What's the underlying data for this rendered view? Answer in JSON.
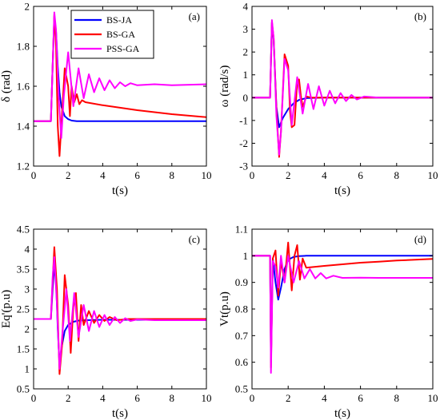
{
  "series_styles": [
    {
      "name": "BS-JA",
      "color": "#0000ff"
    },
    {
      "name": "BS-GA",
      "color": "#ff0000"
    },
    {
      "name": "PSS-GA",
      "color": "#ff00ff"
    }
  ],
  "chart_data": [
    {
      "type": "line",
      "panel_label": "(a)",
      "xlabel": "t(s)",
      "ylabel": "δ (rad)",
      "xlim": [
        0,
        10
      ],
      "ylim": [
        1.2,
        2.0
      ],
      "xticks": [
        0,
        2,
        4,
        6,
        8,
        10
      ],
      "yticks": [
        1.2,
        1.4,
        1.6,
        1.8,
        2.0
      ],
      "ytick_labels": [
        "1.2",
        "1.4",
        "1.6",
        "1.8",
        "2"
      ],
      "grid": false,
      "legend": {
        "placement": "top-center",
        "entries": [
          "BS-JA",
          "BS-GA",
          "PSS-GA"
        ]
      },
      "series": [
        {
          "name": "BS-JA",
          "x": [
            0,
            1.0,
            1.1,
            1.2,
            1.3,
            1.4,
            1.5,
            1.6,
            1.8,
            2.0,
            2.2,
            2.5,
            3.0,
            4.0,
            6.0,
            10.0
          ],
          "y": [
            1.425,
            1.425,
            1.7,
            1.95,
            1.87,
            1.7,
            1.57,
            1.5,
            1.45,
            1.435,
            1.428,
            1.425,
            1.425,
            1.425,
            1.425,
            1.425
          ]
        },
        {
          "name": "BS-GA",
          "x": [
            0,
            1.0,
            1.1,
            1.2,
            1.3,
            1.4,
            1.5,
            1.6,
            1.8,
            2.0,
            2.1,
            2.2,
            2.35,
            2.5,
            2.65,
            2.8,
            3.0,
            4.0,
            6.0,
            8.0,
            10.0
          ],
          "y": [
            1.425,
            1.425,
            1.7,
            1.96,
            1.8,
            1.4,
            1.25,
            1.4,
            1.69,
            1.6,
            1.45,
            1.6,
            1.52,
            1.56,
            1.51,
            1.53,
            1.52,
            1.505,
            1.48,
            1.46,
            1.445
          ]
        },
        {
          "name": "PSS-GA",
          "x": [
            0,
            1.0,
            1.1,
            1.2,
            1.3,
            1.45,
            1.6,
            1.75,
            2.0,
            2.3,
            2.6,
            2.9,
            3.2,
            3.5,
            3.8,
            4.1,
            4.4,
            4.7,
            5.0,
            5.3,
            5.6,
            6.0,
            7.0,
            8.0,
            10.0
          ],
          "y": [
            1.425,
            1.425,
            1.7,
            1.97,
            1.88,
            1.55,
            1.34,
            1.55,
            1.77,
            1.5,
            1.69,
            1.54,
            1.66,
            1.57,
            1.64,
            1.58,
            1.63,
            1.59,
            1.62,
            1.6,
            1.615,
            1.605,
            1.61,
            1.605,
            1.61
          ]
        }
      ]
    },
    {
      "type": "line",
      "panel_label": "(b)",
      "xlabel": "t(s)",
      "ylabel": "ω (rad/s)",
      "xlim": [
        0,
        10
      ],
      "ylim": [
        -3,
        4
      ],
      "xticks": [
        0,
        2,
        4,
        6,
        8,
        10
      ],
      "yticks": [
        -3,
        -2,
        -1,
        0,
        1,
        2,
        3,
        4
      ],
      "ytick_labels": [
        "-3",
        "-2",
        "-1",
        "0",
        "1",
        "2",
        "3",
        "4"
      ],
      "grid": false,
      "series": [
        {
          "name": "BS-JA",
          "x": [
            0,
            1.0,
            1.1,
            1.2,
            1.35,
            1.5,
            1.7,
            2.0,
            2.3,
            2.6,
            3.0,
            4.0,
            10.0
          ],
          "y": [
            0,
            0,
            3.3,
            2.5,
            -0.4,
            -1.3,
            -0.9,
            -0.5,
            -0.25,
            -0.1,
            -0.02,
            0,
            0
          ]
        },
        {
          "name": "BS-GA",
          "x": [
            0,
            1.0,
            1.1,
            1.2,
            1.35,
            1.5,
            1.6,
            1.8,
            2.0,
            2.1,
            2.2,
            2.35,
            2.5,
            2.6,
            2.7,
            2.8,
            2.9,
            3.0,
            3.3,
            4.0,
            10.0
          ],
          "y": [
            0,
            0,
            3.3,
            2.6,
            -0.5,
            -2.6,
            -1.5,
            1.9,
            1.4,
            -0.6,
            -1.3,
            -1.2,
            0.7,
            0.8,
            0.1,
            -0.4,
            -0.2,
            0.05,
            0,
            0,
            0
          ]
        },
        {
          "name": "PSS-GA",
          "x": [
            0,
            1.0,
            1.1,
            1.2,
            1.35,
            1.5,
            1.6,
            1.8,
            2.0,
            2.2,
            2.5,
            2.8,
            3.1,
            3.4,
            3.7,
            4.0,
            4.3,
            4.6,
            4.9,
            5.2,
            5.5,
            5.8,
            6.2,
            7.0,
            10.0
          ],
          "y": [
            0,
            0,
            3.4,
            2.6,
            -0.8,
            -2.5,
            -1.5,
            1.7,
            1.2,
            -1.2,
            0.9,
            -0.7,
            0.6,
            -0.5,
            0.5,
            -0.35,
            0.3,
            -0.25,
            0.2,
            -0.15,
            0.12,
            -0.08,
            0.05,
            0,
            0
          ]
        }
      ]
    },
    {
      "type": "line",
      "panel_label": "(c)",
      "xlabel": "t(s)",
      "ylabel": "Eq'(p.u)",
      "xlim": [
        0,
        10
      ],
      "ylim": [
        0.5,
        4.5
      ],
      "xticks": [
        0,
        2,
        4,
        6,
        8,
        10
      ],
      "yticks": [
        0.5,
        1,
        1.5,
        2,
        2.5,
        3,
        3.5,
        4,
        4.5
      ],
      "ytick_labels": [
        "0.5",
        "1",
        "1.5",
        "2",
        "2.5",
        "3",
        "3.5",
        "4",
        "4.5"
      ],
      "grid": false,
      "series": [
        {
          "name": "BS-JA",
          "x": [
            0,
            1.0,
            1.1,
            1.2,
            1.3,
            1.4,
            1.5,
            1.6,
            1.8,
            2.0,
            2.3,
            2.6,
            3.0,
            4.0,
            10.0
          ],
          "y": [
            2.25,
            2.25,
            3.0,
            3.6,
            3.2,
            2.0,
            1.1,
            1.5,
            1.95,
            2.1,
            2.18,
            2.21,
            2.22,
            2.23,
            2.23
          ]
        },
        {
          "name": "BS-GA",
          "x": [
            0,
            1.0,
            1.1,
            1.2,
            1.35,
            1.5,
            1.65,
            1.8,
            2.0,
            2.15,
            2.3,
            2.45,
            2.6,
            2.75,
            2.9,
            3.2,
            3.5,
            3.8,
            4.1,
            4.4,
            4.8,
            5.5,
            10.0
          ],
          "y": [
            2.25,
            2.25,
            3.2,
            4.05,
            3.0,
            0.87,
            1.6,
            3.35,
            2.6,
            1.4,
            2.55,
            2.9,
            1.7,
            2.6,
            2.1,
            2.45,
            2.15,
            2.35,
            2.2,
            2.3,
            2.22,
            2.25,
            2.25
          ]
        },
        {
          "name": "PSS-GA",
          "x": [
            0,
            1.0,
            1.1,
            1.2,
            1.35,
            1.5,
            1.65,
            1.9,
            2.1,
            2.35,
            2.6,
            2.9,
            3.2,
            3.5,
            3.8,
            4.1,
            4.4,
            4.7,
            5.0,
            5.3,
            5.6,
            6.0,
            7.0,
            10.0
          ],
          "y": [
            2.25,
            2.25,
            3.3,
            3.8,
            2.6,
            1.0,
            1.8,
            3.0,
            1.7,
            2.9,
            1.8,
            2.6,
            1.95,
            2.45,
            2.05,
            2.35,
            2.1,
            2.3,
            2.15,
            2.27,
            2.2,
            2.24,
            2.22,
            2.22
          ]
        }
      ]
    },
    {
      "type": "line",
      "panel_label": "(d)",
      "xlabel": "t(s)",
      "ylabel": "Vt(p.u)",
      "xlim": [
        0,
        10
      ],
      "ylim": [
        0.5,
        1.1
      ],
      "xticks": [
        0,
        2,
        4,
        6,
        8,
        10
      ],
      "yticks": [
        0.5,
        0.6,
        0.7,
        0.8,
        0.9,
        1.0,
        1.1
      ],
      "ytick_labels": [
        "0.5",
        "0.6",
        "0.7",
        "0.8",
        "0.9",
        "1",
        "1.1"
      ],
      "grid": false,
      "series": [
        {
          "name": "BS-JA",
          "x": [
            0,
            1.0,
            1.05,
            1.15,
            1.3,
            1.45,
            1.6,
            1.8,
            2.0,
            2.3,
            2.6,
            3.0,
            4.0,
            10.0
          ],
          "y": [
            1.0,
            1.0,
            0.6,
            0.99,
            0.9,
            0.835,
            0.88,
            0.95,
            0.985,
            0.996,
            0.999,
            1.0,
            1.0,
            1.0
          ]
        },
        {
          "name": "BS-GA",
          "x": [
            0,
            1.0,
            1.05,
            1.15,
            1.3,
            1.45,
            1.6,
            1.8,
            2.0,
            2.2,
            2.35,
            2.5,
            2.65,
            2.8,
            3.0,
            4.0,
            5.0,
            6.0,
            7.0,
            8.0,
            10.0
          ],
          "y": [
            1.0,
            1.0,
            0.58,
            0.99,
            1.02,
            0.85,
            0.98,
            0.9,
            1.05,
            0.87,
            1.0,
            1.04,
            0.91,
            0.99,
            0.955,
            0.962,
            0.968,
            0.974,
            0.978,
            0.982,
            0.988
          ]
        },
        {
          "name": "PSS-GA",
          "x": [
            0,
            1.0,
            1.05,
            1.15,
            1.3,
            1.45,
            1.6,
            1.8,
            2.0,
            2.3,
            2.6,
            2.9,
            3.2,
            3.5,
            3.8,
            4.1,
            4.5,
            5.0,
            6.0,
            7.0,
            8.0,
            10.0
          ],
          "y": [
            1.0,
            1.0,
            0.56,
            0.98,
            0.96,
            0.88,
            1.0,
            0.9,
            1.0,
            0.9,
            0.98,
            0.915,
            0.95,
            0.915,
            0.935,
            0.915,
            0.925,
            0.917,
            0.918,
            0.917,
            0.917,
            0.917
          ]
        }
      ]
    }
  ]
}
